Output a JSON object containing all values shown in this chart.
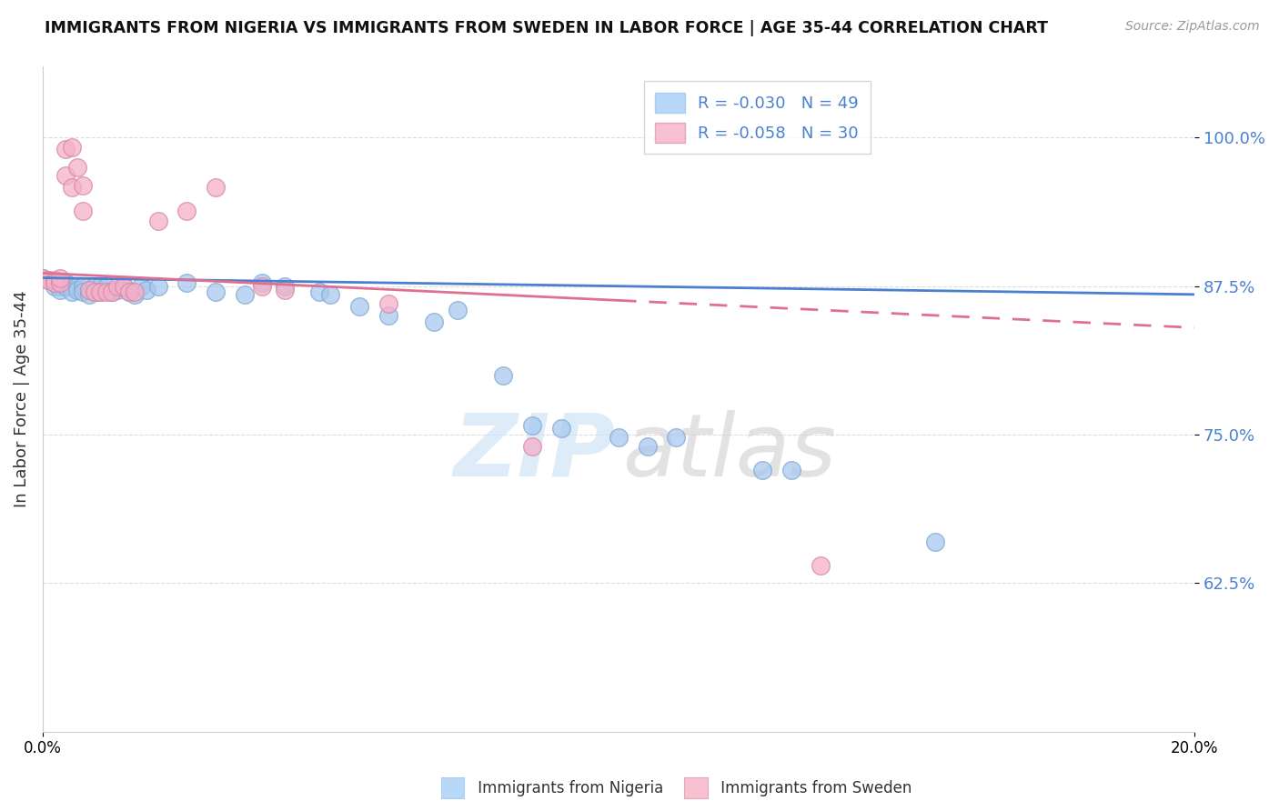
{
  "title": "IMMIGRANTS FROM NIGERIA VS IMMIGRANTS FROM SWEDEN IN LABOR FORCE | AGE 35-44 CORRELATION CHART",
  "source": "Source: ZipAtlas.com",
  "ylabel": "In Labor Force | Age 35-44",
  "xlim": [
    0.0,
    0.2
  ],
  "ylim": [
    0.5,
    1.06
  ],
  "yticks": [
    0.625,
    0.75,
    0.875,
    1.0
  ],
  "ytick_labels": [
    "62.5%",
    "75.0%",
    "87.5%",
    "100.0%"
  ],
  "xtick_labels": [
    "0.0%",
    "20.0%"
  ],
  "nigeria_R": "-0.030",
  "nigeria_N": "49",
  "sweden_R": "-0.058",
  "sweden_N": "30",
  "nigeria_color": "#a8c8f0",
  "nigeria_edge": "#80aad0",
  "sweden_color": "#f4b0c8",
  "sweden_edge": "#d888a8",
  "nigeria_line_color": "#4a80d0",
  "sweden_line_color": "#e07090",
  "legend_box_nigeria": "#b8d8f8",
  "legend_box_sweden": "#f8c0d0",
  "axis_tick_color": "#4a80d0",
  "grid_color": "#dddddd",
  "nigeria_trend": [
    0.882,
    0.868
  ],
  "sweden_trend": [
    0.886,
    0.84
  ],
  "nigeria_x": [
    0.0,
    0.001,
    0.002,
    0.002,
    0.003,
    0.003,
    0.004,
    0.004,
    0.005,
    0.005,
    0.006,
    0.006,
    0.007,
    0.007,
    0.008,
    0.008,
    0.009,
    0.009,
    0.01,
    0.01,
    0.011,
    0.012,
    0.013,
    0.014,
    0.015,
    0.016,
    0.017,
    0.018,
    0.02,
    0.025,
    0.03,
    0.035,
    0.038,
    0.042,
    0.048,
    0.05,
    0.055,
    0.06,
    0.068,
    0.072,
    0.08,
    0.085,
    0.09,
    0.1,
    0.105,
    0.11,
    0.125,
    0.13,
    0.155
  ],
  "nigeria_y": [
    0.882,
    0.88,
    0.878,
    0.875,
    0.875,
    0.872,
    0.878,
    0.875,
    0.875,
    0.87,
    0.875,
    0.872,
    0.875,
    0.87,
    0.872,
    0.868,
    0.875,
    0.87,
    0.875,
    0.87,
    0.875,
    0.87,
    0.872,
    0.875,
    0.87,
    0.868,
    0.875,
    0.872,
    0.875,
    0.878,
    0.87,
    0.868,
    0.878,
    0.875,
    0.87,
    0.868,
    0.858,
    0.85,
    0.845,
    0.855,
    0.8,
    0.758,
    0.755,
    0.748,
    0.74,
    0.748,
    0.72,
    0.72,
    0.66
  ],
  "sweden_x": [
    0.0,
    0.001,
    0.002,
    0.002,
    0.003,
    0.003,
    0.004,
    0.004,
    0.005,
    0.005,
    0.006,
    0.007,
    0.007,
    0.008,
    0.009,
    0.01,
    0.011,
    0.012,
    0.013,
    0.014,
    0.015,
    0.016,
    0.02,
    0.025,
    0.03,
    0.038,
    0.042,
    0.06,
    0.085,
    0.135
  ],
  "sweden_y": [
    0.882,
    0.88,
    0.88,
    0.878,
    0.878,
    0.882,
    0.968,
    0.99,
    0.958,
    0.992,
    0.975,
    0.96,
    0.938,
    0.872,
    0.87,
    0.87,
    0.87,
    0.87,
    0.875,
    0.875,
    0.87,
    0.87,
    0.93,
    0.938,
    0.958,
    0.875,
    0.872,
    0.86,
    0.74,
    0.64
  ],
  "watermark_zip_color": "#c8e0f8",
  "watermark_atlas_color": "#d0d0d0"
}
